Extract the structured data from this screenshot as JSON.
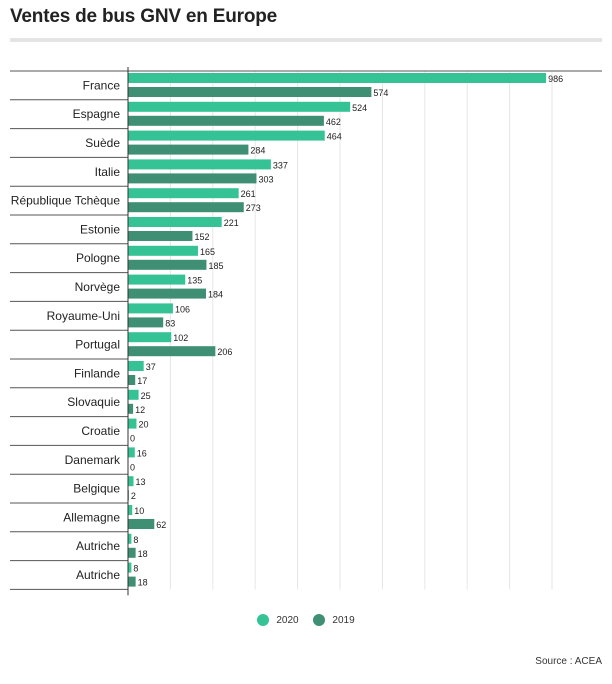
{
  "title": "Ventes de bus GNV en Europe",
  "source": "Source : ACEA",
  "colors": {
    "series_2020": "#35c396",
    "series_2019": "#3e8f74"
  },
  "legend": [
    {
      "label": "2020",
      "color": "#35c396"
    },
    {
      "label": "2019",
      "color": "#3e8f74"
    }
  ],
  "chart_data": {
    "type": "bar",
    "orientation": "horizontal",
    "categories": [
      "France",
      "Espagne",
      "Suède",
      "Italie",
      "République Tchèque",
      "Estonie",
      "Pologne",
      "Norvège",
      "Royaume-Uni",
      "Portugal",
      "Finlande",
      "Slovaquie",
      "Croatie",
      "Danemark",
      "Belgique",
      "Allemagne",
      "Autriche",
      "Autriche"
    ],
    "series": [
      {
        "name": "2020",
        "values": [
          986,
          524,
          464,
          337,
          261,
          221,
          165,
          135,
          106,
          102,
          37,
          25,
          20,
          16,
          13,
          10,
          8,
          8
        ]
      },
      {
        "name": "2019",
        "values": [
          574,
          462,
          284,
          303,
          273,
          152,
          185,
          184,
          83,
          206,
          17,
          12,
          0,
          0,
          2,
          62,
          18,
          18
        ]
      }
    ],
    "xlim": [
      0,
      1000
    ],
    "grid": true,
    "data_labels": true,
    "legend_position": "bottom"
  }
}
